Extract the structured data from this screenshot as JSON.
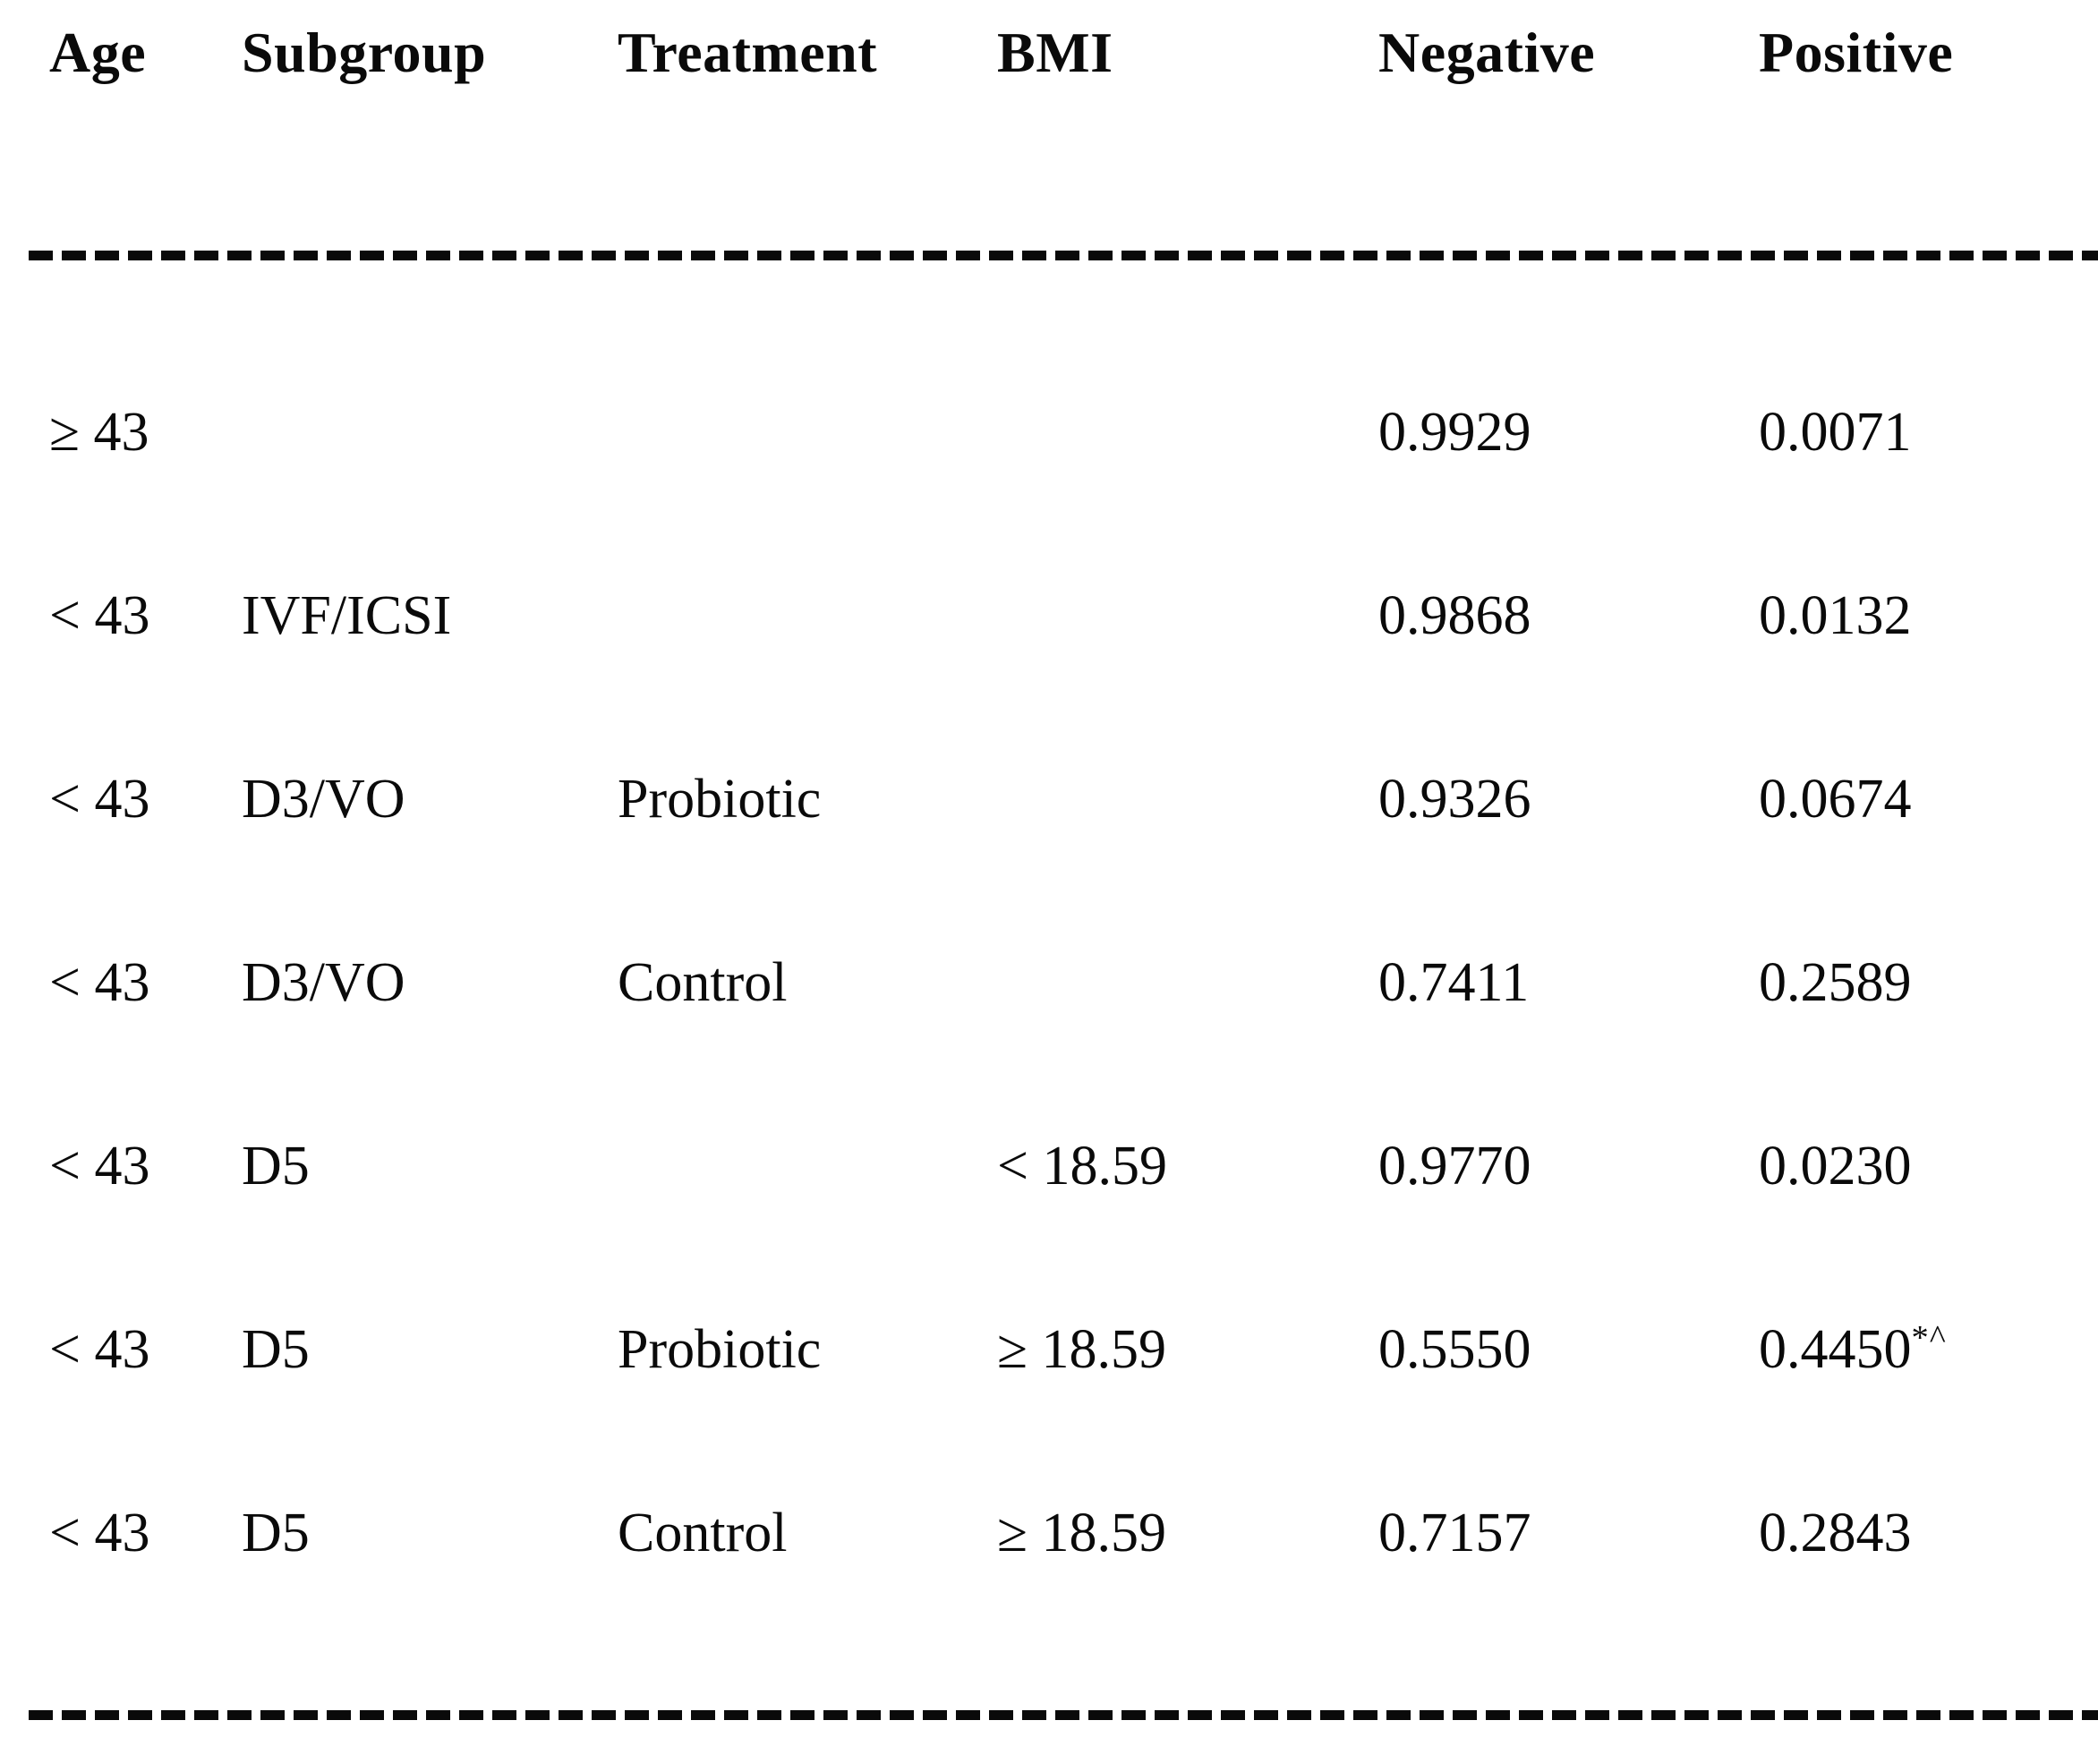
{
  "table": {
    "columns": [
      "Age",
      "Subgroup",
      "Treatment",
      "BMI",
      "Negative",
      "Positive"
    ],
    "rows": [
      {
        "age": "≥ 43",
        "subgroup": "",
        "treatment": "",
        "bmi": "",
        "negative": "0.9929",
        "positive": "0.0071",
        "positive_sup": ""
      },
      {
        "age": "< 43",
        "subgroup": "IVF/ICSI",
        "treatment": "",
        "bmi": "",
        "negative": "0.9868",
        "positive": "0.0132",
        "positive_sup": ""
      },
      {
        "age": "< 43",
        "subgroup": "D3/VO",
        "treatment": "Probiotic",
        "bmi": "",
        "negative": "0.9326",
        "positive": "0.0674",
        "positive_sup": ""
      },
      {
        "age": "< 43",
        "subgroup": "D3/VO",
        "treatment": "Control",
        "bmi": "",
        "negative": "0.7411",
        "positive": "0.2589",
        "positive_sup": ""
      },
      {
        "age": "< 43",
        "subgroup": "D5",
        "treatment": "",
        "bmi": "< 18.59",
        "negative": "0.9770",
        "positive": "0.0230",
        "positive_sup": ""
      },
      {
        "age": "< 43",
        "subgroup": "D5",
        "treatment": "Probiotic",
        "bmi": "≥ 18.59",
        "negative": "0.5550",
        "positive": "0.4450",
        "positive_sup": "*^"
      },
      {
        "age": "< 43",
        "subgroup": "D5",
        "treatment": "Control",
        "bmi": "≥ 18.59",
        "negative": "0.7157",
        "positive": "0.2843",
        "positive_sup": ""
      }
    ],
    "text_color": "#0a0a0a",
    "background_color": "#ffffff"
  }
}
